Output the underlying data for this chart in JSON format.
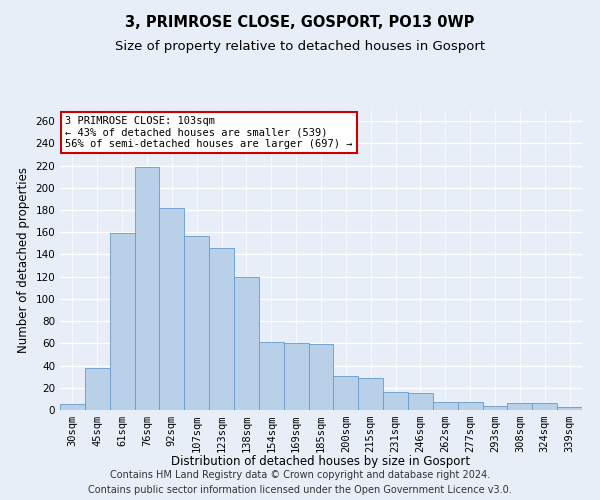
{
  "title": "3, PRIMROSE CLOSE, GOSPORT, PO13 0WP",
  "subtitle": "Size of property relative to detached houses in Gosport",
  "xlabel": "Distribution of detached houses by size in Gosport",
  "ylabel": "Number of detached properties",
  "categories": [
    "30sqm",
    "45sqm",
    "61sqm",
    "76sqm",
    "92sqm",
    "107sqm",
    "123sqm",
    "138sqm",
    "154sqm",
    "169sqm",
    "185sqm",
    "200sqm",
    "215sqm",
    "231sqm",
    "246sqm",
    "262sqm",
    "277sqm",
    "293sqm",
    "308sqm",
    "324sqm",
    "339sqm"
  ],
  "values": [
    5,
    38,
    159,
    219,
    182,
    157,
    146,
    120,
    61,
    60,
    59,
    31,
    29,
    16,
    15,
    7,
    7,
    4,
    6,
    6,
    3
  ],
  "bar_color": "#b8d0e8",
  "bar_edge_color": "#6699cc",
  "annotation_text": "3 PRIMROSE CLOSE: 103sqm\n← 43% of detached houses are smaller (539)\n56% of semi-detached houses are larger (697) →",
  "annotation_box_facecolor": "#ffffff",
  "annotation_box_edgecolor": "#cc0000",
  "ylim": [
    0,
    270
  ],
  "yticks": [
    0,
    20,
    40,
    60,
    80,
    100,
    120,
    140,
    160,
    180,
    200,
    220,
    240,
    260
  ],
  "footer_line1": "Contains HM Land Registry data © Crown copyright and database right 2024.",
  "footer_line2": "Contains public sector information licensed under the Open Government Licence v3.0.",
  "background_color": "#e8eef8",
  "plot_bg_color": "#e8eef8",
  "grid_color": "#ffffff",
  "title_fontsize": 10.5,
  "subtitle_fontsize": 9.5,
  "axis_label_fontsize": 8.5,
  "tick_fontsize": 7.5,
  "annotation_fontsize": 7.5,
  "footer_fontsize": 7
}
